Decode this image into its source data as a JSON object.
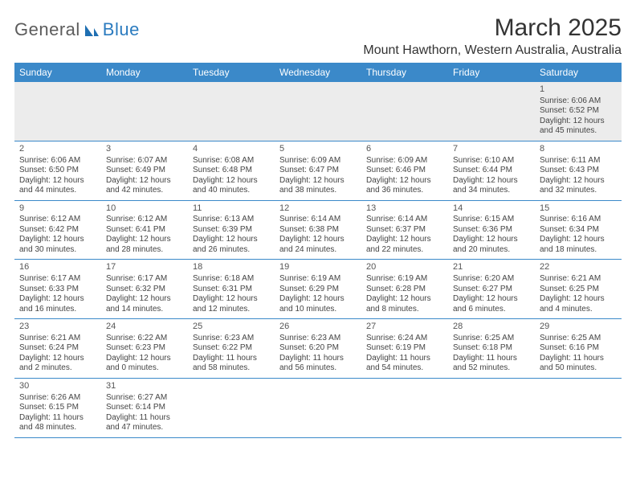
{
  "logo": {
    "word1": "General",
    "word2": "Blue"
  },
  "title": "March 2025",
  "location": "Mount Hawthorn, Western Australia, Australia",
  "colors": {
    "header_bg": "#3b89c9",
    "header_text": "#ffffff",
    "rule": "#3b89c9",
    "muted_row_bg": "#ececec",
    "text": "#444444",
    "logo_gray": "#5c5c5c",
    "logo_blue": "#2b7bbf"
  },
  "dow": [
    "Sunday",
    "Monday",
    "Tuesday",
    "Wednesday",
    "Thursday",
    "Friday",
    "Saturday"
  ],
  "weeks": [
    [
      null,
      null,
      null,
      null,
      null,
      null,
      {
        "n": "1",
        "sr": "Sunrise: 6:06 AM",
        "ss": "Sunset: 6:52 PM",
        "d1": "Daylight: 12 hours",
        "d2": "and 45 minutes."
      }
    ],
    [
      {
        "n": "2",
        "sr": "Sunrise: 6:06 AM",
        "ss": "Sunset: 6:50 PM",
        "d1": "Daylight: 12 hours",
        "d2": "and 44 minutes."
      },
      {
        "n": "3",
        "sr": "Sunrise: 6:07 AM",
        "ss": "Sunset: 6:49 PM",
        "d1": "Daylight: 12 hours",
        "d2": "and 42 minutes."
      },
      {
        "n": "4",
        "sr": "Sunrise: 6:08 AM",
        "ss": "Sunset: 6:48 PM",
        "d1": "Daylight: 12 hours",
        "d2": "and 40 minutes."
      },
      {
        "n": "5",
        "sr": "Sunrise: 6:09 AM",
        "ss": "Sunset: 6:47 PM",
        "d1": "Daylight: 12 hours",
        "d2": "and 38 minutes."
      },
      {
        "n": "6",
        "sr": "Sunrise: 6:09 AM",
        "ss": "Sunset: 6:46 PM",
        "d1": "Daylight: 12 hours",
        "d2": "and 36 minutes."
      },
      {
        "n": "7",
        "sr": "Sunrise: 6:10 AM",
        "ss": "Sunset: 6:44 PM",
        "d1": "Daylight: 12 hours",
        "d2": "and 34 minutes."
      },
      {
        "n": "8",
        "sr": "Sunrise: 6:11 AM",
        "ss": "Sunset: 6:43 PM",
        "d1": "Daylight: 12 hours",
        "d2": "and 32 minutes."
      }
    ],
    [
      {
        "n": "9",
        "sr": "Sunrise: 6:12 AM",
        "ss": "Sunset: 6:42 PM",
        "d1": "Daylight: 12 hours",
        "d2": "and 30 minutes."
      },
      {
        "n": "10",
        "sr": "Sunrise: 6:12 AM",
        "ss": "Sunset: 6:41 PM",
        "d1": "Daylight: 12 hours",
        "d2": "and 28 minutes."
      },
      {
        "n": "11",
        "sr": "Sunrise: 6:13 AM",
        "ss": "Sunset: 6:39 PM",
        "d1": "Daylight: 12 hours",
        "d2": "and 26 minutes."
      },
      {
        "n": "12",
        "sr": "Sunrise: 6:14 AM",
        "ss": "Sunset: 6:38 PM",
        "d1": "Daylight: 12 hours",
        "d2": "and 24 minutes."
      },
      {
        "n": "13",
        "sr": "Sunrise: 6:14 AM",
        "ss": "Sunset: 6:37 PM",
        "d1": "Daylight: 12 hours",
        "d2": "and 22 minutes."
      },
      {
        "n": "14",
        "sr": "Sunrise: 6:15 AM",
        "ss": "Sunset: 6:36 PM",
        "d1": "Daylight: 12 hours",
        "d2": "and 20 minutes."
      },
      {
        "n": "15",
        "sr": "Sunrise: 6:16 AM",
        "ss": "Sunset: 6:34 PM",
        "d1": "Daylight: 12 hours",
        "d2": "and 18 minutes."
      }
    ],
    [
      {
        "n": "16",
        "sr": "Sunrise: 6:17 AM",
        "ss": "Sunset: 6:33 PM",
        "d1": "Daylight: 12 hours",
        "d2": "and 16 minutes."
      },
      {
        "n": "17",
        "sr": "Sunrise: 6:17 AM",
        "ss": "Sunset: 6:32 PM",
        "d1": "Daylight: 12 hours",
        "d2": "and 14 minutes."
      },
      {
        "n": "18",
        "sr": "Sunrise: 6:18 AM",
        "ss": "Sunset: 6:31 PM",
        "d1": "Daylight: 12 hours",
        "d2": "and 12 minutes."
      },
      {
        "n": "19",
        "sr": "Sunrise: 6:19 AM",
        "ss": "Sunset: 6:29 PM",
        "d1": "Daylight: 12 hours",
        "d2": "and 10 minutes."
      },
      {
        "n": "20",
        "sr": "Sunrise: 6:19 AM",
        "ss": "Sunset: 6:28 PM",
        "d1": "Daylight: 12 hours",
        "d2": "and 8 minutes."
      },
      {
        "n": "21",
        "sr": "Sunrise: 6:20 AM",
        "ss": "Sunset: 6:27 PM",
        "d1": "Daylight: 12 hours",
        "d2": "and 6 minutes."
      },
      {
        "n": "22",
        "sr": "Sunrise: 6:21 AM",
        "ss": "Sunset: 6:25 PM",
        "d1": "Daylight: 12 hours",
        "d2": "and 4 minutes."
      }
    ],
    [
      {
        "n": "23",
        "sr": "Sunrise: 6:21 AM",
        "ss": "Sunset: 6:24 PM",
        "d1": "Daylight: 12 hours",
        "d2": "and 2 minutes."
      },
      {
        "n": "24",
        "sr": "Sunrise: 6:22 AM",
        "ss": "Sunset: 6:23 PM",
        "d1": "Daylight: 12 hours",
        "d2": "and 0 minutes."
      },
      {
        "n": "25",
        "sr": "Sunrise: 6:23 AM",
        "ss": "Sunset: 6:22 PM",
        "d1": "Daylight: 11 hours",
        "d2": "and 58 minutes."
      },
      {
        "n": "26",
        "sr": "Sunrise: 6:23 AM",
        "ss": "Sunset: 6:20 PM",
        "d1": "Daylight: 11 hours",
        "d2": "and 56 minutes."
      },
      {
        "n": "27",
        "sr": "Sunrise: 6:24 AM",
        "ss": "Sunset: 6:19 PM",
        "d1": "Daylight: 11 hours",
        "d2": "and 54 minutes."
      },
      {
        "n": "28",
        "sr": "Sunrise: 6:25 AM",
        "ss": "Sunset: 6:18 PM",
        "d1": "Daylight: 11 hours",
        "d2": "and 52 minutes."
      },
      {
        "n": "29",
        "sr": "Sunrise: 6:25 AM",
        "ss": "Sunset: 6:16 PM",
        "d1": "Daylight: 11 hours",
        "d2": "and 50 minutes."
      }
    ],
    [
      {
        "n": "30",
        "sr": "Sunrise: 6:26 AM",
        "ss": "Sunset: 6:15 PM",
        "d1": "Daylight: 11 hours",
        "d2": "and 48 minutes."
      },
      {
        "n": "31",
        "sr": "Sunrise: 6:27 AM",
        "ss": "Sunset: 6:14 PM",
        "d1": "Daylight: 11 hours",
        "d2": "and 47 minutes."
      },
      null,
      null,
      null,
      null,
      null
    ]
  ]
}
